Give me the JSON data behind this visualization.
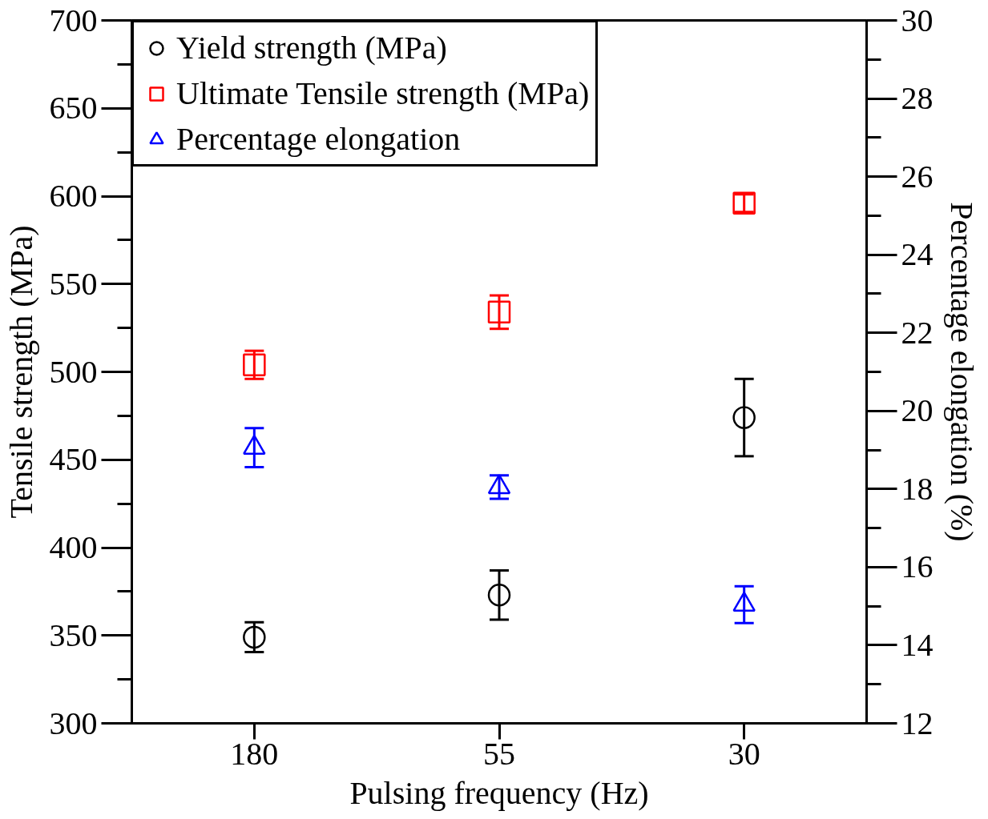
{
  "chart_data": {
    "type": "scatter",
    "xlabel": "Pulsing frequency (Hz)",
    "ylabel": "Tensile strength (MPa)",
    "y2label": "Percentage elongation (%)",
    "categories": [
      "180",
      "55",
      "30"
    ],
    "series": [
      {
        "name": "Yield strength (MPa)",
        "color": "#000000",
        "marker": "circle",
        "values": [
          349,
          373,
          474
        ],
        "errors": [
          8.5,
          14,
          22
        ]
      },
      {
        "name": "Ultimate Tensile strength (MPa)",
        "color": "#ff0000",
        "marker": "square",
        "values": [
          504,
          534,
          596
        ],
        "errors": [
          8,
          9.5,
          5
        ]
      },
      {
        "name": "Percentage elongation",
        "color": "#0000ff",
        "marker": "triangle",
        "axis": "y2",
        "values": [
          19.06,
          18.05,
          15.04
        ],
        "errors": [
          0.5,
          0.3,
          0.47
        ]
      }
    ],
    "ylim": [
      300,
      700
    ],
    "yticks": [
      300,
      350,
      400,
      450,
      500,
      550,
      600,
      650,
      700
    ],
    "y2lim": [
      12,
      30
    ],
    "y2ticks": [
      12,
      14,
      16,
      18,
      20,
      22,
      24,
      26,
      28,
      30
    ],
    "grid": false,
    "legend": "top left"
  }
}
